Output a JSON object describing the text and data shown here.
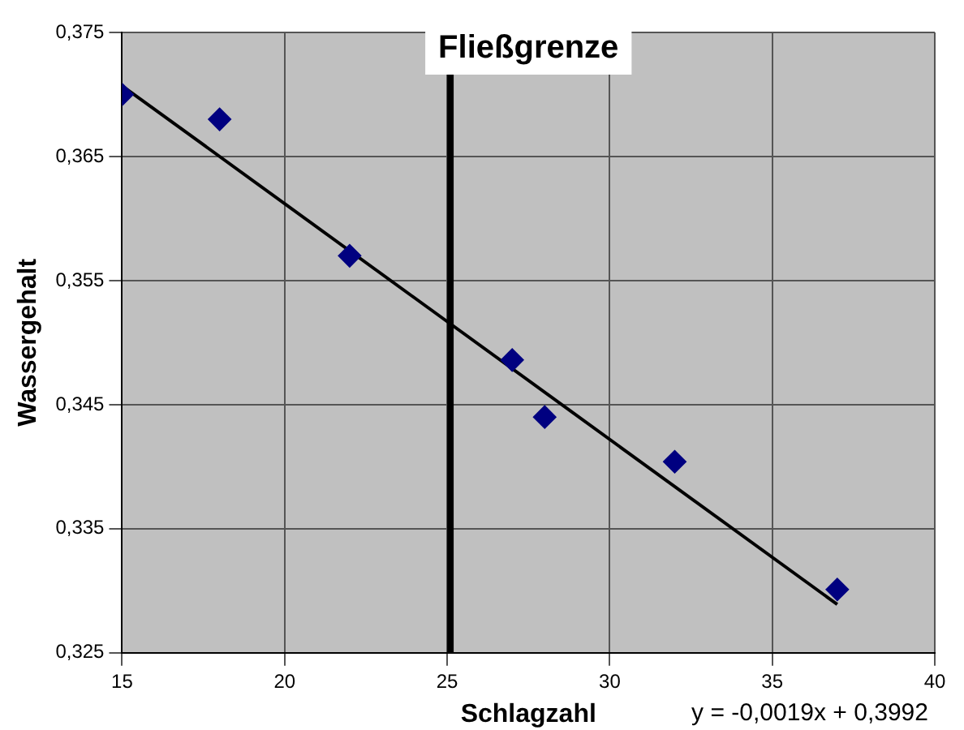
{
  "chart_data": {
    "type": "scatter",
    "title": "Fließgrenze",
    "xlabel": "Schlagzahl",
    "ylabel": "Wassergehalt",
    "x": [
      15,
      18,
      22,
      27,
      28,
      32,
      37
    ],
    "series": [
      {
        "type": "scatter",
        "color": "#000080",
        "values": [
          0.37,
          0.368,
          0.357,
          0.3486,
          0.344,
          0.3404,
          0.3301
        ],
        "marker": "diamond"
      },
      {
        "type": "line",
        "color": "#000000",
        "x": [
          15,
          37
        ],
        "values": [
          0.3707,
          0.3289
        ],
        "marker": "none"
      }
    ],
    "xlim": [
      15,
      40
    ],
    "xticks": [
      15,
      20,
      25,
      30,
      35,
      40
    ],
    "ylim": [
      0.325,
      0.375
    ],
    "yticks": [
      {
        "value": 0.325,
        "label": "0,325"
      },
      {
        "value": 0.335,
        "label": "0,335"
      },
      {
        "value": 0.345,
        "label": "0,345"
      },
      {
        "value": 0.355,
        "label": "0,355"
      },
      {
        "value": 0.365,
        "label": "0,365"
      },
      {
        "value": 0.375,
        "label": "0,375"
      }
    ],
    "ref_lines": [
      {
        "axis": "x",
        "value": 25.1,
        "color": "#000000"
      }
    ],
    "annotations": [
      "y = -0,0019x + 0,3992"
    ],
    "grid": true,
    "legend": false
  }
}
